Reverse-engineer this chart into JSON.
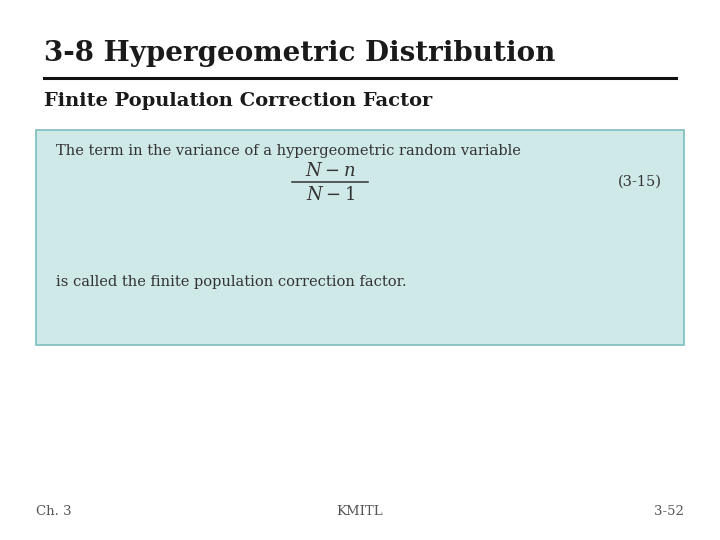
{
  "title": "3-8 Hypergeometric Distribution",
  "subtitle": "Finite Population Correction Factor",
  "box_text_top": "The term in the variance of a hypergeometric random variable",
  "box_text_bottom": "is called the finite population correction factor.",
  "equation_label": "(3-15)",
  "footer_left": "Ch. 3",
  "footer_center": "KMITL",
  "footer_right": "3-52",
  "bg_color": "#ffffff",
  "box_bg_color": "#cfe8e8",
  "box_border_color": "#7bbcbc",
  "title_color": "#1a1a1a",
  "text_color": "#333333",
  "footer_color": "#555555",
  "title_fontsize": 20,
  "subtitle_fontsize": 14,
  "body_fontsize": 10.5,
  "eq_label_fontsize": 10.5,
  "footer_fontsize": 9.5
}
